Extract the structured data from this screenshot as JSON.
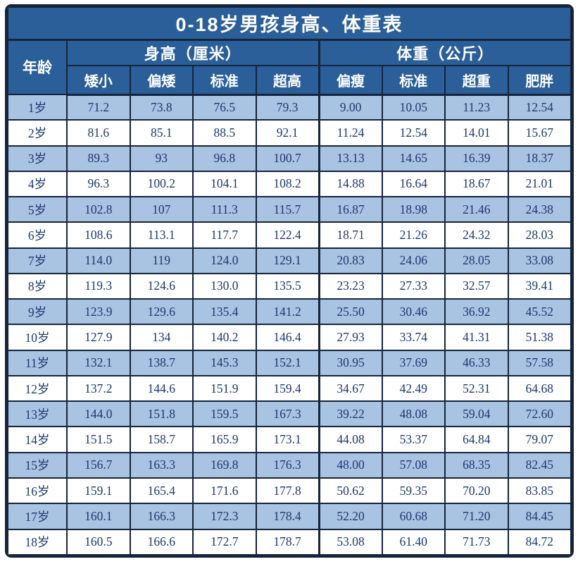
{
  "colors": {
    "header_bg": "#2b5f9a",
    "row_alt_bg": "#a9c3e3",
    "row_bg": "#ffffff",
    "border": "#15243a",
    "data_text": "#1b386e",
    "header_text": "#ffffff"
  },
  "chart_data": {
    "type": "table",
    "title": "0-18岁男孩身高、体重表",
    "age_label": "年龄",
    "column_groups": [
      {
        "label": "身高（厘米）",
        "columns": [
          "矮小",
          "偏矮",
          "标准",
          "超高"
        ]
      },
      {
        "label": "体重（公斤）",
        "columns": [
          "偏瘦",
          "标准",
          "超重",
          "肥胖"
        ]
      }
    ],
    "rows": [
      {
        "age": "1岁",
        "height": [
          "71.2",
          "73.8",
          "76.5",
          "79.3"
        ],
        "weight": [
          "9.00",
          "10.05",
          "11.23",
          "12.54"
        ]
      },
      {
        "age": "2岁",
        "height": [
          "81.6",
          "85.1",
          "88.5",
          "92.1"
        ],
        "weight": [
          "11.24",
          "12.54",
          "14.01",
          "15.67"
        ]
      },
      {
        "age": "3岁",
        "height": [
          "89.3",
          "93",
          "96.8",
          "100.7"
        ],
        "weight": [
          "13.13",
          "14.65",
          "16.39",
          "18.37"
        ]
      },
      {
        "age": "4岁",
        "height": [
          "96.3",
          "100.2",
          "104.1",
          "108.2"
        ],
        "weight": [
          "14.88",
          "16.64",
          "18.67",
          "21.01"
        ]
      },
      {
        "age": "5岁",
        "height": [
          "102.8",
          "107",
          "111.3",
          "115.7"
        ],
        "weight": [
          "16.87",
          "18.98",
          "21.46",
          "24.38"
        ]
      },
      {
        "age": "6岁",
        "height": [
          "108.6",
          "113.1",
          "117.7",
          "122.4"
        ],
        "weight": [
          "18.71",
          "21.26",
          "24.32",
          "28.03"
        ]
      },
      {
        "age": "7岁",
        "height": [
          "114.0",
          "119",
          "124.0",
          "129.1"
        ],
        "weight": [
          "20.83",
          "24.06",
          "28.05",
          "33.08"
        ]
      },
      {
        "age": "8岁",
        "height": [
          "119.3",
          "124.6",
          "130.0",
          "135.5"
        ],
        "weight": [
          "23.23",
          "27.33",
          "32.57",
          "39.41"
        ]
      },
      {
        "age": "9岁",
        "height": [
          "123.9",
          "129.6",
          "135.4",
          "141.2"
        ],
        "weight": [
          "25.50",
          "30.46",
          "36.92",
          "45.52"
        ]
      },
      {
        "age": "10岁",
        "height": [
          "127.9",
          "134",
          "140.2",
          "146.4"
        ],
        "weight": [
          "27.93",
          "33.74",
          "41.31",
          "51.38"
        ]
      },
      {
        "age": "11岁",
        "height": [
          "132.1",
          "138.7",
          "145.3",
          "152.1"
        ],
        "weight": [
          "30.95",
          "37.69",
          "46.33",
          "57.58"
        ]
      },
      {
        "age": "12岁",
        "height": [
          "137.2",
          "144.6",
          "151.9",
          "159.4"
        ],
        "weight": [
          "34.67",
          "42.49",
          "52.31",
          "64.68"
        ]
      },
      {
        "age": "13岁",
        "height": [
          "144.0",
          "151.8",
          "159.5",
          "167.3"
        ],
        "weight": [
          "39.22",
          "48.08",
          "59.04",
          "72.60"
        ]
      },
      {
        "age": "14岁",
        "height": [
          "151.5",
          "158.7",
          "165.9",
          "173.1"
        ],
        "weight": [
          "44.08",
          "53.37",
          "64.84",
          "79.07"
        ]
      },
      {
        "age": "15岁",
        "height": [
          "156.7",
          "163.3",
          "169.8",
          "176.3"
        ],
        "weight": [
          "48.00",
          "57.08",
          "68.35",
          "82.45"
        ]
      },
      {
        "age": "16岁",
        "height": [
          "159.1",
          "165.4",
          "171.6",
          "177.8"
        ],
        "weight": [
          "50.62",
          "59.35",
          "70.20",
          "83.85"
        ]
      },
      {
        "age": "17岁",
        "height": [
          "160.1",
          "166.3",
          "172.3",
          "178.4"
        ],
        "weight": [
          "52.20",
          "60.68",
          "71.20",
          "84.45"
        ]
      },
      {
        "age": "18岁",
        "height": [
          "160.5",
          "166.6",
          "172.7",
          "178.7"
        ],
        "weight": [
          "53.08",
          "61.40",
          "71.73",
          "84.72"
        ]
      }
    ]
  }
}
